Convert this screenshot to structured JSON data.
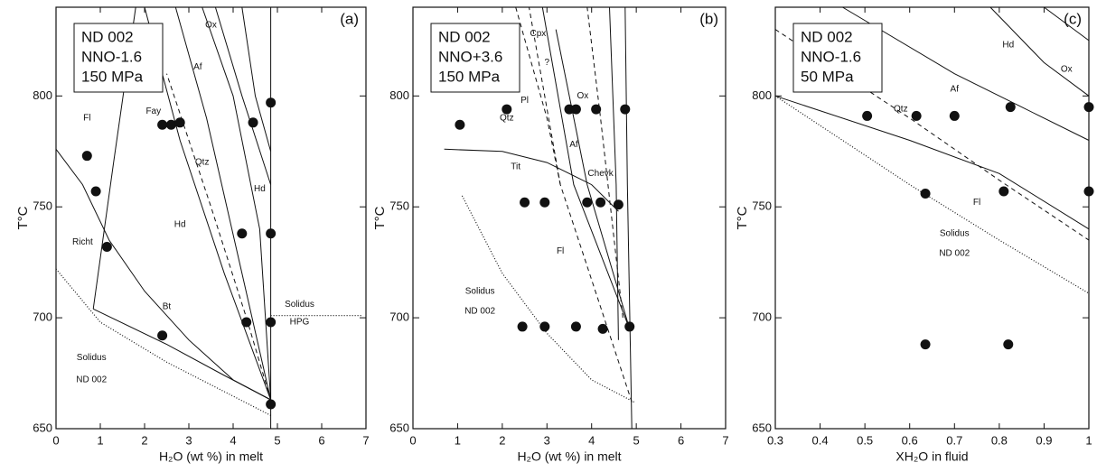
{
  "chart_data": [
    {
      "type": "scatter",
      "title": "(a)",
      "conditions": [
        "ND 002",
        "NNO-1.6",
        "150 MPa"
      ],
      "x_label": "H₂O (wt %) in melt",
      "y_label": "T°C",
      "xlim": [
        0,
        7
      ],
      "ylim": [
        650,
        840
      ],
      "xticks": [
        0,
        1,
        2,
        3,
        4,
        5,
        6,
        7
      ],
      "yticks": [
        650,
        700,
        750,
        800
      ],
      "color": "#111111",
      "x": [
        0.7,
        0.9,
        1.15,
        2.4,
        2.6,
        2.8,
        2.4,
        4.2,
        4.3,
        4.45,
        4.85,
        4.85,
        4.85,
        4.85
      ],
      "y": [
        773,
        757,
        732,
        787,
        787,
        788,
        692,
        738,
        698,
        788,
        797,
        738,
        698,
        661
      ],
      "annotations": [
        "Ox",
        "Af",
        "Fay",
        "Qtz",
        "Hd",
        "Hd",
        "Fl",
        "Richt",
        "Bt",
        "Solidus",
        "ND 002",
        "Solidus",
        "HPG"
      ]
    },
    {
      "type": "scatter",
      "title": "(b)",
      "conditions": [
        "ND 002",
        "NNO+3.6",
        "150 MPa"
      ],
      "x_label": "H₂O (wt %) in melt",
      "y_label": "T°C",
      "xlim": [
        0,
        7
      ],
      "ylim": [
        650,
        840
      ],
      "xticks": [
        0,
        1,
        2,
        3,
        4,
        5,
        6,
        7
      ],
      "yticks": [
        650,
        700,
        750,
        800
      ],
      "color": "#111111",
      "x": [
        1.05,
        2.1,
        3.5,
        3.65,
        4.1,
        4.75,
        2.5,
        2.95,
        3.9,
        4.2,
        4.6,
        2.45,
        2.95,
        3.65,
        4.25,
        4.85
      ],
      "y": [
        787,
        794,
        794,
        794,
        794,
        794,
        752,
        752,
        752,
        752,
        751,
        696,
        696,
        696,
        695,
        696
      ],
      "annotations": [
        "Cpx",
        "?",
        "Pl",
        "Qtz",
        "Ox",
        "Af",
        "Tit",
        "Chevk",
        "Fl",
        "Solidus",
        "ND 002"
      ]
    },
    {
      "type": "scatter",
      "title": "(c)",
      "conditions": [
        "ND 002",
        "NNO-1.6",
        "50 MPa"
      ],
      "x_label": "XH₂O in fluid",
      "y_label": "T°C",
      "xlim": [
        0.3,
        1
      ],
      "ylim": [
        650,
        840
      ],
      "xticks": [
        0.3,
        0.4,
        0.5,
        0.6,
        0.7,
        0.8,
        0.9,
        1
      ],
      "yticks": [
        650,
        700,
        750,
        800
      ],
      "color": "#111111",
      "x": [
        0.505,
        0.615,
        0.7,
        0.825,
        1.0,
        0.635,
        0.81,
        1.0,
        0.635,
        0.82
      ],
      "y": [
        791,
        791,
        791,
        795,
        795,
        756,
        757,
        757,
        688,
        688
      ],
      "annotations": [
        "Hd",
        "Ox",
        "Af",
        "Qtz",
        "Fl",
        "Solidus",
        "ND 002"
      ]
    }
  ]
}
